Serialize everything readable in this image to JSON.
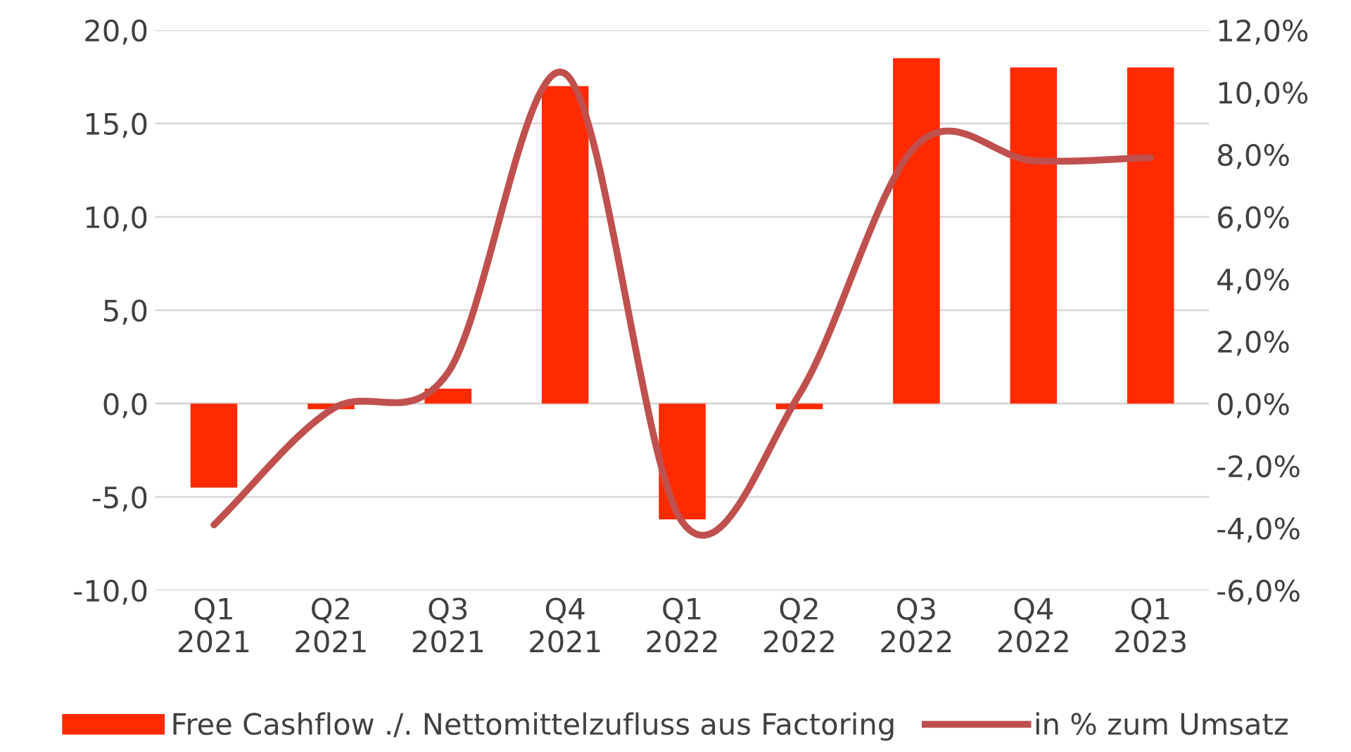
{
  "chart_data": {
    "type": "bar",
    "categories": [
      "Q1\n2021",
      "Q2\n2021",
      "Q3\n2021",
      "Q4\n2021",
      "Q1\n2022",
      "Q2\n2022",
      "Q3\n2022",
      "Q4\n2022",
      "Q1\n2023"
    ],
    "series": [
      {
        "name": "Free Cashflow ./. Nettomittelzufluss aus Factoring",
        "color": "#ff2a00",
        "values": [
          -4.5,
          -0.3,
          0.8,
          17.0,
          -6.2,
          -0.3,
          18.5,
          18.0,
          18.0
        ]
      },
      {
        "name": "in % zum Umsatz",
        "type": "line",
        "axis": "y2",
        "color": "#c0504d",
        "values": [
          -3.9,
          -0.2,
          1.0,
          10.6,
          -3.8,
          0.3,
          8.3,
          7.8,
          7.9
        ]
      }
    ],
    "ylim": [
      -10,
      20
    ],
    "yticks": [
      {
        "value": -10,
        "label": "-10,0"
      },
      {
        "value": -5,
        "label": "-5,0"
      },
      {
        "value": 0,
        "label": "0,0"
      },
      {
        "value": 5,
        "label": "5,0"
      },
      {
        "value": 10,
        "label": "10,0"
      },
      {
        "value": 15,
        "label": "15,0"
      },
      {
        "value": 20,
        "label": "20,0"
      }
    ],
    "y2lim": [
      -6,
      12
    ],
    "y2ticks": [
      {
        "value": -6,
        "label": "-6,0%"
      },
      {
        "value": -4,
        "label": "-4,0%"
      },
      {
        "value": -2,
        "label": "-2,0%"
      },
      {
        "value": 0,
        "label": "0,0%"
      },
      {
        "value": 2,
        "label": "2,0%"
      },
      {
        "value": 4,
        "label": "4,0%"
      },
      {
        "value": 6,
        "label": "6,0%"
      },
      {
        "value": 8,
        "label": "8,0%"
      },
      {
        "value": 10,
        "label": "10,0%"
      },
      {
        "value": 12,
        "label": "12,0%"
      }
    ],
    "grid": "y",
    "legend": "bottom",
    "line_style": "solid",
    "marker": "none"
  }
}
